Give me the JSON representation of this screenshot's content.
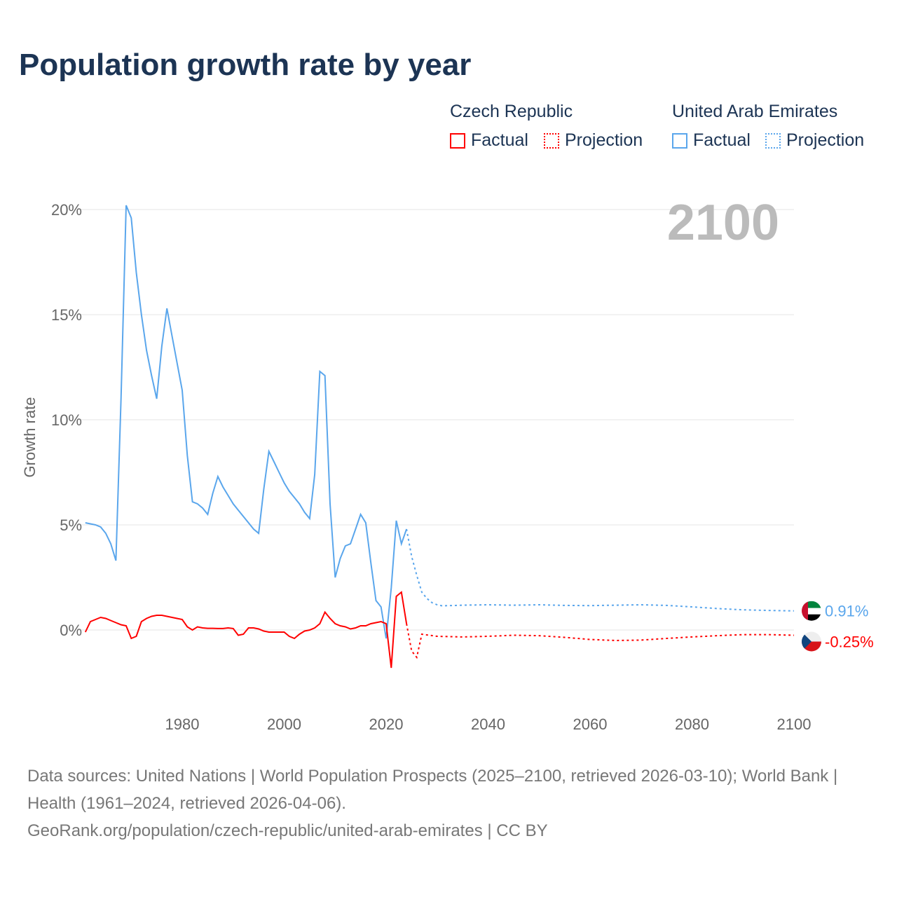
{
  "title": "Population growth rate by year",
  "legend": {
    "groups": [
      {
        "name": "Czech Republic",
        "color": "#ff0000",
        "factual": "Factual",
        "projection": "Projection"
      },
      {
        "name": "United Arab Emirates",
        "color": "#5aa6ec",
        "factual": "Factual",
        "projection": "Projection"
      }
    ]
  },
  "year_label": "2100",
  "footer": {
    "line1": "Data sources: United Nations | World Population Prospects (2025–2100, retrieved 2026-03-10); World Bank | Health (1961–2024, retrieved 2026-04-06).",
    "line2": "GeoRank.org/population/czech-republic/united-arab-emirates | CC BY"
  },
  "chart_data": {
    "type": "line",
    "title": "Population growth rate by year",
    "xlabel": "",
    "ylabel": "Growth rate",
    "xlim": [
      1961,
      2100
    ],
    "ylim": [
      -3.5,
      20
    ],
    "xticks": [
      1980,
      2000,
      2020,
      2040,
      2060,
      2080,
      2100
    ],
    "xtick_labels": [
      "1980",
      "2000",
      "2020",
      "2040",
      "2060",
      "2080",
      "2100"
    ],
    "yticks": [
      0,
      5,
      10,
      15,
      20
    ],
    "ytick_labels": [
      "0%",
      "5%",
      "10%",
      "15%",
      "20%"
    ],
    "grid": true,
    "series": [
      {
        "name": "United Arab Emirates",
        "color": "#5aa6ec",
        "end_label": "0.91%",
        "factual": {
          "x": [
            1961,
            1962,
            1963,
            1964,
            1965,
            1966,
            1967,
            1968,
            1969,
            1970,
            1971,
            1972,
            1973,
            1974,
            1975,
            1976,
            1977,
            1978,
            1979,
            1980,
            1981,
            1982,
            1983,
            1984,
            1985,
            1986,
            1987,
            1988,
            1989,
            1990,
            1991,
            1992,
            1993,
            1994,
            1995,
            1996,
            1997,
            1998,
            1999,
            2000,
            2001,
            2002,
            2003,
            2004,
            2005,
            2006,
            2007,
            2008,
            2009,
            2010,
            2011,
            2012,
            2013,
            2014,
            2015,
            2016,
            2017,
            2018,
            2019,
            2020,
            2021,
            2022,
            2023,
            2024
          ],
          "y": [
            5.1,
            5.05,
            5.0,
            4.9,
            4.6,
            4.1,
            3.3,
            11.0,
            20.2,
            19.6,
            17.0,
            15.0,
            13.3,
            12.1,
            11.0,
            13.5,
            15.3,
            14.0,
            12.7,
            11.4,
            8.3,
            6.1,
            6.0,
            5.8,
            5.5,
            6.5,
            7.3,
            6.8,
            6.4,
            6.0,
            5.7,
            5.4,
            5.1,
            4.8,
            4.6,
            6.7,
            8.5,
            8.0,
            7.5,
            7.0,
            6.6,
            6.3,
            6.0,
            5.6,
            5.3,
            7.4,
            12.3,
            12.1,
            6.0,
            2.5,
            3.4,
            4.0,
            4.1,
            4.8,
            5.5,
            5.1,
            3.2,
            1.4,
            1.1,
            -0.4,
            2.0,
            5.2,
            4.1,
            4.8
          ]
        },
        "projection": {
          "x": [
            2024,
            2025,
            2026,
            2027,
            2028,
            2029,
            2030,
            2031,
            2035,
            2040,
            2045,
            2050,
            2055,
            2060,
            2065,
            2070,
            2075,
            2080,
            2085,
            2090,
            2095,
            2100
          ],
          "y": [
            4.8,
            3.5,
            2.6,
            1.8,
            1.5,
            1.3,
            1.2,
            1.15,
            1.18,
            1.2,
            1.18,
            1.2,
            1.17,
            1.16,
            1.18,
            1.2,
            1.17,
            1.1,
            1.02,
            0.96,
            0.93,
            0.91
          ]
        }
      },
      {
        "name": "Czech Republic",
        "color": "#ff0000",
        "end_label": "-0.25%",
        "factual": {
          "x": [
            1961,
            1962,
            1963,
            1964,
            1965,
            1966,
            1967,
            1968,
            1969,
            1970,
            1971,
            1972,
            1973,
            1974,
            1975,
            1976,
            1977,
            1978,
            1979,
            1980,
            1981,
            1982,
            1983,
            1984,
            1985,
            1986,
            1987,
            1988,
            1989,
            1990,
            1991,
            1992,
            1993,
            1994,
            1995,
            1996,
            1997,
            1998,
            1999,
            2000,
            2001,
            2002,
            2003,
            2004,
            2005,
            2006,
            2007,
            2008,
            2009,
            2010,
            2011,
            2012,
            2013,
            2014,
            2015,
            2016,
            2017,
            2018,
            2019,
            2020,
            2021,
            2022,
            2023,
            2024
          ],
          "y": [
            -0.1,
            0.4,
            0.5,
            0.6,
            0.55,
            0.45,
            0.35,
            0.25,
            0.2,
            -0.4,
            -0.3,
            0.4,
            0.55,
            0.65,
            0.7,
            0.7,
            0.65,
            0.6,
            0.55,
            0.5,
            0.15,
            0.0,
            0.15,
            0.1,
            0.08,
            0.08,
            0.07,
            0.07,
            0.1,
            0.07,
            -0.25,
            -0.2,
            0.1,
            0.1,
            0.05,
            -0.05,
            -0.1,
            -0.1,
            -0.1,
            -0.1,
            -0.3,
            -0.4,
            -0.2,
            -0.05,
            0.0,
            0.1,
            0.3,
            0.85,
            0.55,
            0.3,
            0.2,
            0.15,
            0.05,
            0.1,
            0.2,
            0.2,
            0.3,
            0.35,
            0.4,
            0.3,
            -1.8,
            1.6,
            1.8,
            0.3
          ]
        },
        "projection": {
          "x": [
            2024,
            2025,
            2026,
            2027,
            2030,
            2035,
            2040,
            2045,
            2050,
            2055,
            2060,
            2065,
            2070,
            2075,
            2080,
            2085,
            2090,
            2095,
            2100
          ],
          "y": [
            0.3,
            -1.0,
            -1.3,
            -0.2,
            -0.3,
            -0.33,
            -0.3,
            -0.25,
            -0.27,
            -0.35,
            -0.45,
            -0.5,
            -0.48,
            -0.4,
            -0.33,
            -0.27,
            -0.22,
            -0.22,
            -0.25
          ]
        }
      }
    ]
  }
}
